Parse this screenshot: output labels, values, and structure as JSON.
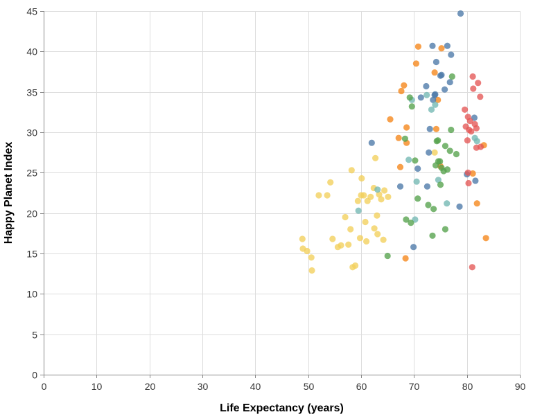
{
  "chart_data": {
    "type": "scatter",
    "title": "",
    "xlabel": "Life Expectancy (years)",
    "ylabel": "Happy Planet Index",
    "xlim": [
      0,
      90
    ],
    "ylim": [
      0,
      45
    ],
    "x_ticks": [
      0,
      10,
      20,
      30,
      40,
      50,
      60,
      70,
      80,
      90
    ],
    "y_ticks": [
      0,
      5,
      10,
      15,
      20,
      25,
      30,
      35,
      40,
      45
    ],
    "grid": true,
    "legend": "none",
    "series": [
      {
        "color": "#f2cf5b",
        "points": [
          [
            48.9,
            16.8
          ],
          [
            49.0,
            15.6
          ],
          [
            49.8,
            15.3
          ],
          [
            50.6,
            14.5
          ],
          [
            50.7,
            12.9
          ],
          [
            52.0,
            22.2
          ],
          [
            53.6,
            22.2
          ],
          [
            54.2,
            23.8
          ],
          [
            54.6,
            16.8
          ],
          [
            55.6,
            15.8
          ],
          [
            56.2,
            16.0
          ],
          [
            57.0,
            19.5
          ],
          [
            57.6,
            16.1
          ],
          [
            58.0,
            18.0
          ],
          [
            58.2,
            25.3
          ],
          [
            58.4,
            13.3
          ],
          [
            58.9,
            13.5
          ],
          [
            59.4,
            21.5
          ],
          [
            59.8,
            16.9
          ],
          [
            60.0,
            22.2
          ],
          [
            60.1,
            24.3
          ],
          [
            60.5,
            22.2
          ],
          [
            60.8,
            18.9
          ],
          [
            61.0,
            16.5
          ],
          [
            61.2,
            21.5
          ],
          [
            61.8,
            22.0
          ],
          [
            62.4,
            23.1
          ],
          [
            62.5,
            18.1
          ],
          [
            62.7,
            26.8
          ],
          [
            63.0,
            19.7
          ],
          [
            63.1,
            17.4
          ],
          [
            63.4,
            22.3
          ],
          [
            63.8,
            21.7
          ],
          [
            64.2,
            16.7
          ],
          [
            64.4,
            22.8
          ],
          [
            65.1,
            22.0
          ],
          [
            73.9,
            27.5
          ]
        ]
      },
      {
        "color": "#f58518",
        "points": [
          [
            65.5,
            31.6
          ],
          [
            67.1,
            29.3
          ],
          [
            67.4,
            25.7
          ],
          [
            67.6,
            35.1
          ],
          [
            68.1,
            35.8
          ],
          [
            68.4,
            14.4
          ],
          [
            68.6,
            30.6
          ],
          [
            68.6,
            28.7
          ],
          [
            70.4,
            38.5
          ],
          [
            70.8,
            40.6
          ],
          [
            73.9,
            37.4
          ],
          [
            74.2,
            30.4
          ],
          [
            74.5,
            34.0
          ],
          [
            75.0,
            25.8
          ],
          [
            75.2,
            40.4
          ],
          [
            81.1,
            24.9
          ],
          [
            81.9,
            21.2
          ],
          [
            83.2,
            28.4
          ],
          [
            83.6,
            16.9
          ]
        ]
      },
      {
        "color": "#4c78a8",
        "points": [
          [
            62.0,
            28.7
          ],
          [
            67.4,
            23.3
          ],
          [
            69.9,
            15.8
          ],
          [
            70.7,
            25.5
          ],
          [
            71.3,
            34.3
          ],
          [
            72.3,
            35.7
          ],
          [
            72.5,
            23.3
          ],
          [
            72.8,
            27.5
          ],
          [
            73.0,
            30.4
          ],
          [
            73.5,
            40.7
          ],
          [
            73.6,
            34.0
          ],
          [
            73.9,
            34.6
          ],
          [
            74.0,
            34.7
          ],
          [
            74.2,
            38.7
          ],
          [
            75.0,
            37.0
          ],
          [
            75.2,
            37.1
          ],
          [
            75.8,
            35.3
          ],
          [
            76.3,
            40.7
          ],
          [
            76.8,
            36.2
          ],
          [
            77.0,
            39.6
          ],
          [
            78.6,
            20.8
          ],
          [
            78.8,
            44.7
          ],
          [
            80.0,
            24.8
          ],
          [
            81.4,
            31.8
          ],
          [
            81.6,
            24.0
          ]
        ]
      },
      {
        "color": "#72b7b2",
        "points": [
          [
            59.5,
            20.3
          ],
          [
            63.1,
            22.9
          ],
          [
            69.0,
            26.6
          ],
          [
            69.6,
            34.0
          ],
          [
            70.2,
            19.2
          ],
          [
            70.5,
            23.9
          ],
          [
            72.4,
            34.6
          ],
          [
            73.3,
            32.8
          ],
          [
            74.0,
            33.4
          ],
          [
            74.6,
            24.1
          ],
          [
            76.2,
            21.2
          ],
          [
            81.5,
            29.3
          ],
          [
            81.9,
            28.9
          ]
        ]
      },
      {
        "color": "#54a24b",
        "points": [
          [
            65.0,
            14.7
          ],
          [
            68.3,
            29.2
          ],
          [
            68.5,
            19.2
          ],
          [
            69.2,
            34.3
          ],
          [
            69.4,
            18.8
          ],
          [
            69.6,
            33.2
          ],
          [
            70.2,
            26.5
          ],
          [
            70.7,
            21.8
          ],
          [
            72.7,
            21.0
          ],
          [
            73.5,
            17.2
          ],
          [
            73.7,
            20.5
          ],
          [
            74.1,
            25.9
          ],
          [
            74.3,
            28.9
          ],
          [
            74.5,
            29.0
          ],
          [
            74.6,
            26.4
          ],
          [
            74.9,
            26.4
          ],
          [
            75.0,
            23.5
          ],
          [
            75.2,
            25.6
          ],
          [
            75.6,
            25.2
          ],
          [
            75.9,
            18.0
          ],
          [
            75.9,
            28.3
          ],
          [
            76.3,
            25.4
          ],
          [
            76.8,
            27.7
          ],
          [
            77.0,
            30.3
          ],
          [
            77.2,
            36.9
          ],
          [
            78.0,
            27.3
          ]
        ]
      },
      {
        "color": "#e45756",
        "points": [
          [
            79.6,
            32.8
          ],
          [
            79.8,
            30.7
          ],
          [
            80.1,
            29.0
          ],
          [
            80.2,
            31.9
          ],
          [
            80.2,
            25.0
          ],
          [
            80.3,
            23.7
          ],
          [
            80.4,
            30.3
          ],
          [
            80.6,
            31.4
          ],
          [
            80.8,
            30.1
          ],
          [
            81.0,
            13.3
          ],
          [
            81.1,
            36.9
          ],
          [
            81.2,
            35.4
          ],
          [
            81.5,
            31.0
          ],
          [
            81.8,
            30.5
          ],
          [
            81.8,
            28.1
          ],
          [
            82.1,
            36.1
          ],
          [
            82.5,
            34.4
          ],
          [
            82.6,
            28.2
          ]
        ]
      }
    ]
  }
}
